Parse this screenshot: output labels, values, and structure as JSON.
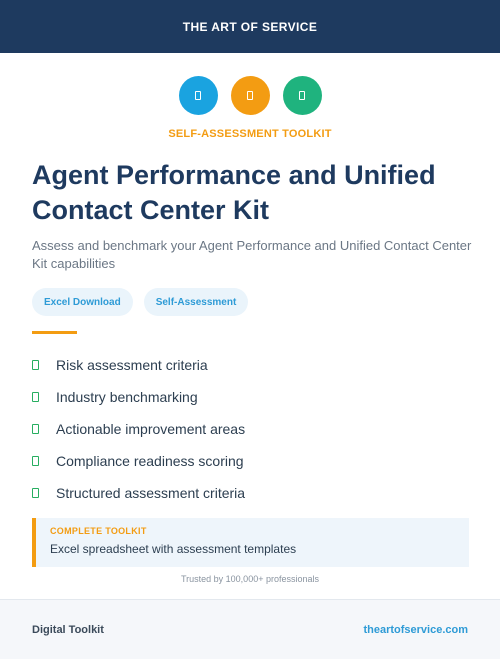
{
  "header": {
    "brand": "THE ART OF SERVICE"
  },
  "icons": [
    {
      "name": "document-icon",
      "color": "#1aa3e0"
    },
    {
      "name": "document-icon",
      "color": "#f39c12"
    },
    {
      "name": "document-icon",
      "color": "#1fb37e"
    }
  ],
  "kicker": "SELF-ASSESSMENT TOOLKIT",
  "title": "Agent Performance and Unified Contact Center Kit",
  "subtitle": "Assess and benchmark your Agent Performance and Unified Contact Center Kit capabilities",
  "tags": [
    "Excel Download",
    "Self-Assessment"
  ],
  "features": [
    "Risk assessment criteria",
    "Industry benchmarking",
    "Actionable improvement areas",
    "Compliance readiness scoring",
    "Structured assessment criteria"
  ],
  "callout": {
    "label": "COMPLETE TOOLKIT",
    "text": "Excel spreadsheet with assessment templates"
  },
  "trust": "Trusted by 100,000+ professionals",
  "footer": {
    "left": "Digital Toolkit",
    "right": "theartofservice.com"
  },
  "colors": {
    "navy": "#1e3a5f",
    "accent": "#f39c12",
    "blue": "#2e9bd6",
    "green": "#27ae60"
  }
}
